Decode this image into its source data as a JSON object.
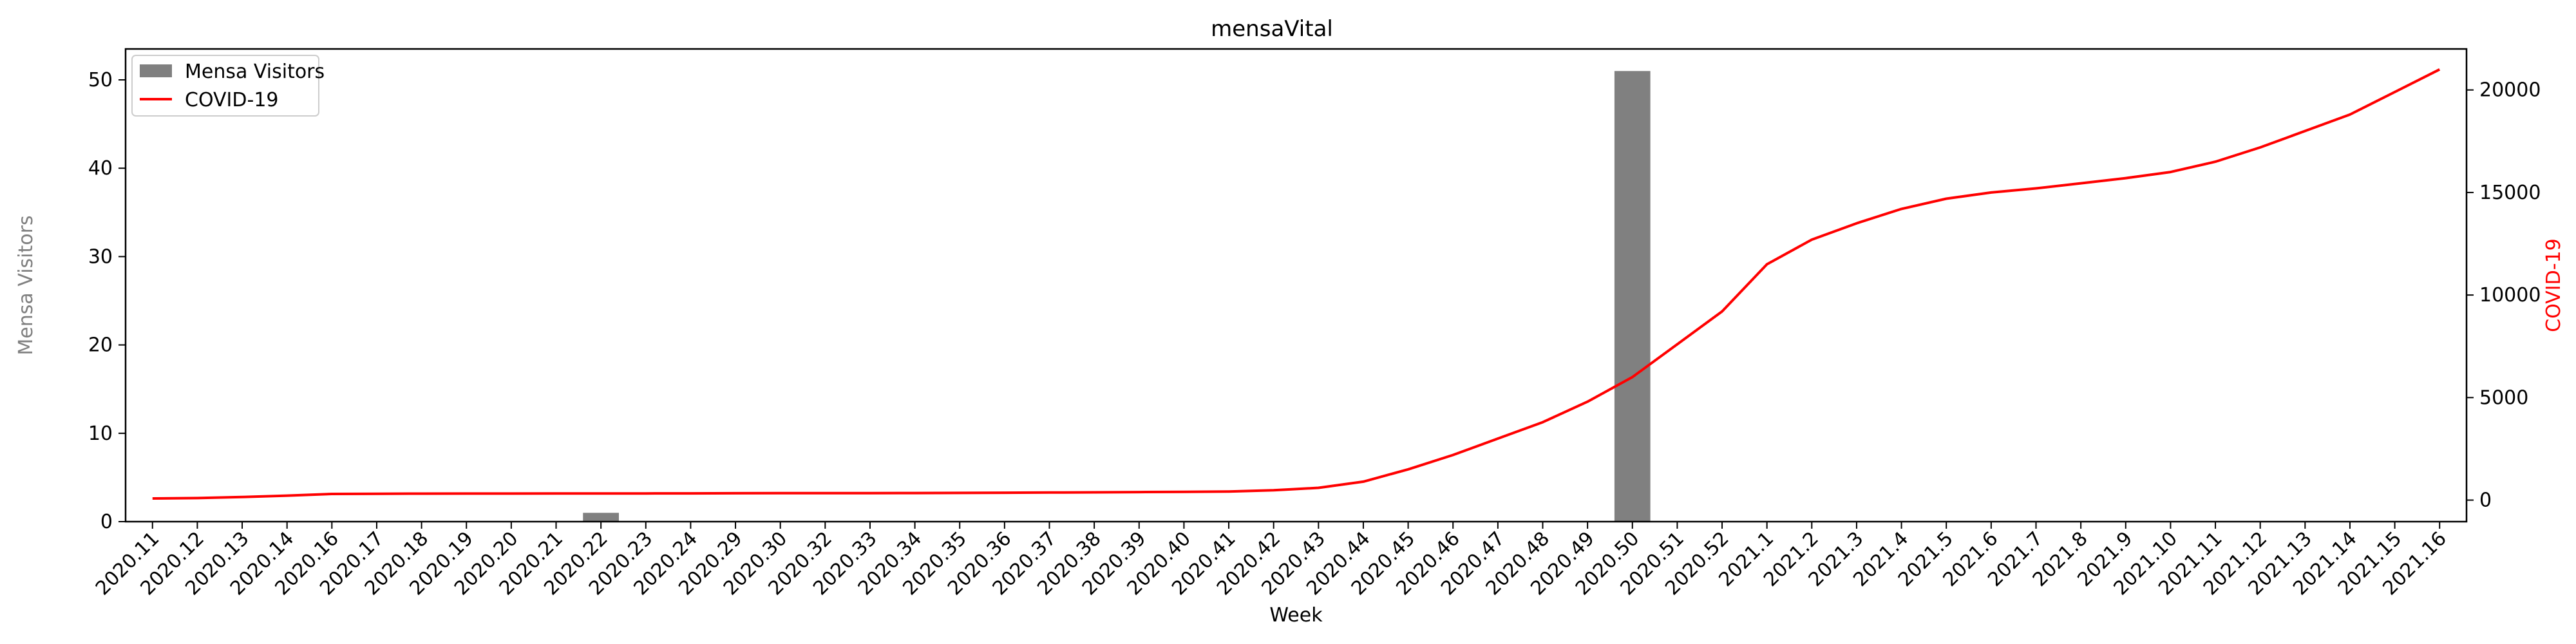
{
  "chart_data": {
    "type": "bar+line",
    "title": "mensaVital",
    "xlabel": "Week",
    "ylabel_left": "Mensa Visitors",
    "ylabel_right": "COVID-19",
    "ylim_left": [
      0,
      53.5
    ],
    "ylim_right": [
      -1050,
      22000
    ],
    "yticks_left": [
      0,
      10,
      20,
      30,
      40,
      50
    ],
    "yticks_right": [
      0,
      5000,
      10000,
      15000,
      20000
    ],
    "grid": false,
    "legend_placement": "upper-left",
    "colors": {
      "bars": "#808080",
      "line": "#ff0000",
      "left_label": "#808080",
      "right_label": "#ff0000"
    },
    "categories": [
      "2020.11",
      "2020.12",
      "2020.13",
      "2020.14",
      "2020.16",
      "2020.17",
      "2020.18",
      "2020.19",
      "2020.20",
      "2020.21",
      "2020.22",
      "2020.23",
      "2020.24",
      "2020.29",
      "2020.30",
      "2020.32",
      "2020.33",
      "2020.34",
      "2020.35",
      "2020.36",
      "2020.37",
      "2020.38",
      "2020.39",
      "2020.40",
      "2020.41",
      "2020.42",
      "2020.43",
      "2020.44",
      "2020.45",
      "2020.46",
      "2020.47",
      "2020.48",
      "2020.49",
      "2020.50",
      "2020.51",
      "2020.52",
      "2021.1",
      "2021.2",
      "2021.3",
      "2021.4",
      "2021.5",
      "2021.6",
      "2021.7",
      "2021.8",
      "2021.9",
      "2021.10",
      "2021.11",
      "2021.12",
      "2021.13",
      "2021.14",
      "2021.15",
      "2021.16"
    ],
    "series": [
      {
        "name": "Mensa Visitors",
        "kind": "bar",
        "axis": "left",
        "values": [
          0,
          0,
          0,
          0,
          0,
          0,
          0,
          0,
          0,
          0,
          1,
          0,
          0,
          0,
          0,
          0,
          0,
          0,
          0,
          0,
          0,
          0,
          0,
          0,
          0,
          0,
          0,
          0,
          0,
          0,
          0,
          0,
          0,
          51,
          0,
          0,
          0,
          0,
          0,
          0,
          0,
          0,
          0,
          0,
          0,
          0,
          0,
          0,
          0,
          0,
          0,
          0
        ]
      },
      {
        "name": "COVID-19",
        "kind": "line",
        "axis": "right",
        "values": [
          80,
          100,
          150,
          220,
          300,
          310,
          315,
          318,
          320,
          322,
          325,
          327,
          330,
          335,
          338,
          340,
          342,
          345,
          350,
          360,
          370,
          380,
          390,
          400,
          420,
          480,
          600,
          900,
          1500,
          2200,
          3000,
          3800,
          4800,
          6000,
          7600,
          9200,
          11500,
          12700,
          13500,
          14200,
          14700,
          15000,
          15200,
          15450,
          15700,
          16000,
          16500,
          17200,
          18000,
          18800,
          19900,
          21000
        ]
      }
    ]
  }
}
